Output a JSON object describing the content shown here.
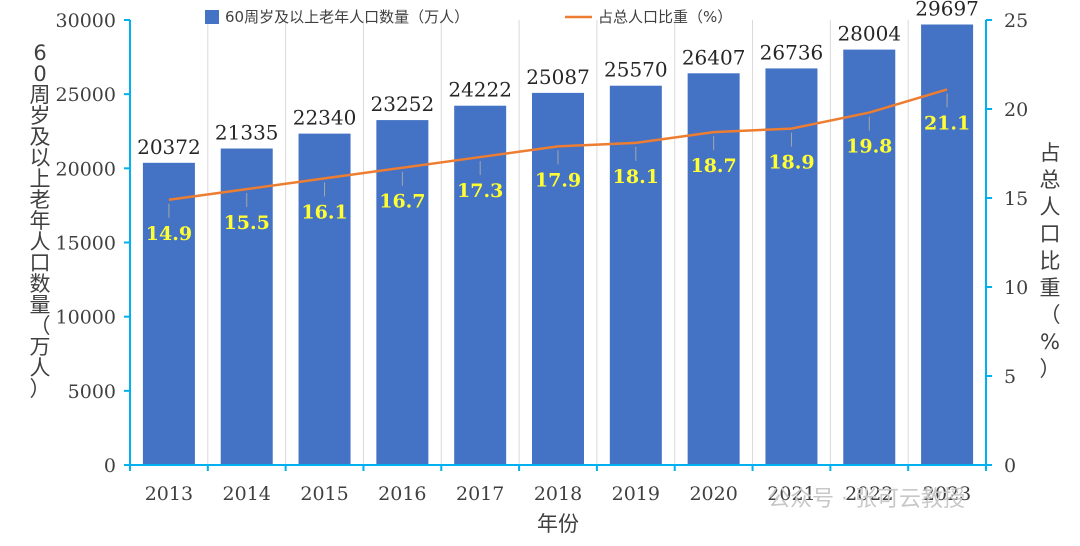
{
  "chart_data": {
    "type": "bar+line",
    "categories": [
      "2013",
      "2014",
      "2015",
      "2016",
      "2017",
      "2018",
      "2019",
      "2020",
      "2021",
      "2022",
      "2023"
    ],
    "series": [
      {
        "name": "60周岁及以上老年人口数量（万人）",
        "type": "bar",
        "axis": "left",
        "color": "#4472c4",
        "values": [
          20372,
          21335,
          22340,
          23252,
          24222,
          25087,
          25570,
          26407,
          26736,
          28004,
          29697
        ]
      },
      {
        "name": "占总人口比重（%）",
        "type": "line",
        "axis": "right",
        "color": "#ed7d31",
        "values": [
          14.9,
          15.5,
          16.1,
          16.7,
          17.3,
          17.9,
          18.1,
          18.7,
          18.9,
          19.8,
          21.1
        ]
      }
    ],
    "xlabel": "年份",
    "ylabel_left": "60周岁及以上老年人口数量（万人）",
    "ylabel_right": "占总人口比重（%）",
    "ylim_left": [
      0,
      30000
    ],
    "ylim_right": [
      0,
      25
    ],
    "yticks_left": [
      "0",
      "5000",
      "10000",
      "15000",
      "20000",
      "25000",
      "30000"
    ],
    "yticks_right": [
      "0",
      "5",
      "10",
      "15",
      "20",
      "25"
    ],
    "grid": "vertical",
    "legend_position": "top",
    "axis_color": "#00b0f0",
    "pct_label_color": "#ffff33"
  },
  "watermark": "公众号 · 张可云教授"
}
